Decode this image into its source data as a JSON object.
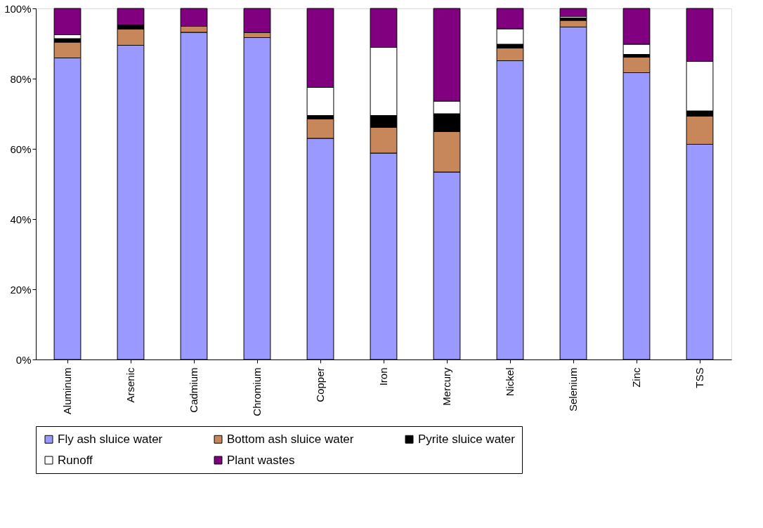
{
  "chart_data": {
    "type": "bar",
    "stacked": true,
    "categories": [
      "Aluminum",
      "Arsenic",
      "Cadmium",
      "Chromium",
      "Copper",
      "Iron",
      "Mercury",
      "Nickel",
      "Selenium",
      "Zinc",
      "TSS"
    ],
    "series": [
      {
        "name": "Fly ash sluice water",
        "color": "#9999ff",
        "values": [
          85.9,
          89.5,
          93.2,
          91.7,
          63.0,
          58.8,
          53.4,
          85.1,
          94.7,
          81.7,
          61.3
        ]
      },
      {
        "name": "Bottom ash sluice water",
        "color": "#c8875a",
        "values": [
          4.5,
          4.6,
          1.7,
          1.4,
          5.5,
          7.3,
          11.5,
          3.6,
          1.9,
          4.4,
          8.0
        ]
      },
      {
        "name": "Pyrite sluice water",
        "color": "#000000",
        "values": [
          1.0,
          1.2,
          0,
          0,
          1.0,
          3.4,
          5.1,
          1.1,
          0.7,
          0.8,
          1.5
        ]
      },
      {
        "name": "Runoff",
        "color": "#ffffff",
        "values": [
          1.1,
          0,
          0,
          0,
          8.0,
          19.4,
          3.6,
          4.4,
          0.4,
          2.9,
          14.1
        ]
      },
      {
        "name": "Plant wastes",
        "color": "#800080",
        "values": [
          7.5,
          4.7,
          5.1,
          6.9,
          22.5,
          11.1,
          26.4,
          5.8,
          2.3,
          10.2,
          15.1
        ]
      }
    ],
    "ylim": [
      0,
      100
    ],
    "yticks": [
      {
        "value": 0,
        "label": "0%"
      },
      {
        "value": 20,
        "label": "20%"
      },
      {
        "value": 40,
        "label": "40%"
      },
      {
        "value": 60,
        "label": "60%"
      },
      {
        "value": 80,
        "label": "80%"
      },
      {
        "value": 100,
        "label": "100%"
      }
    ],
    "grid": false,
    "legend": "bottom"
  }
}
